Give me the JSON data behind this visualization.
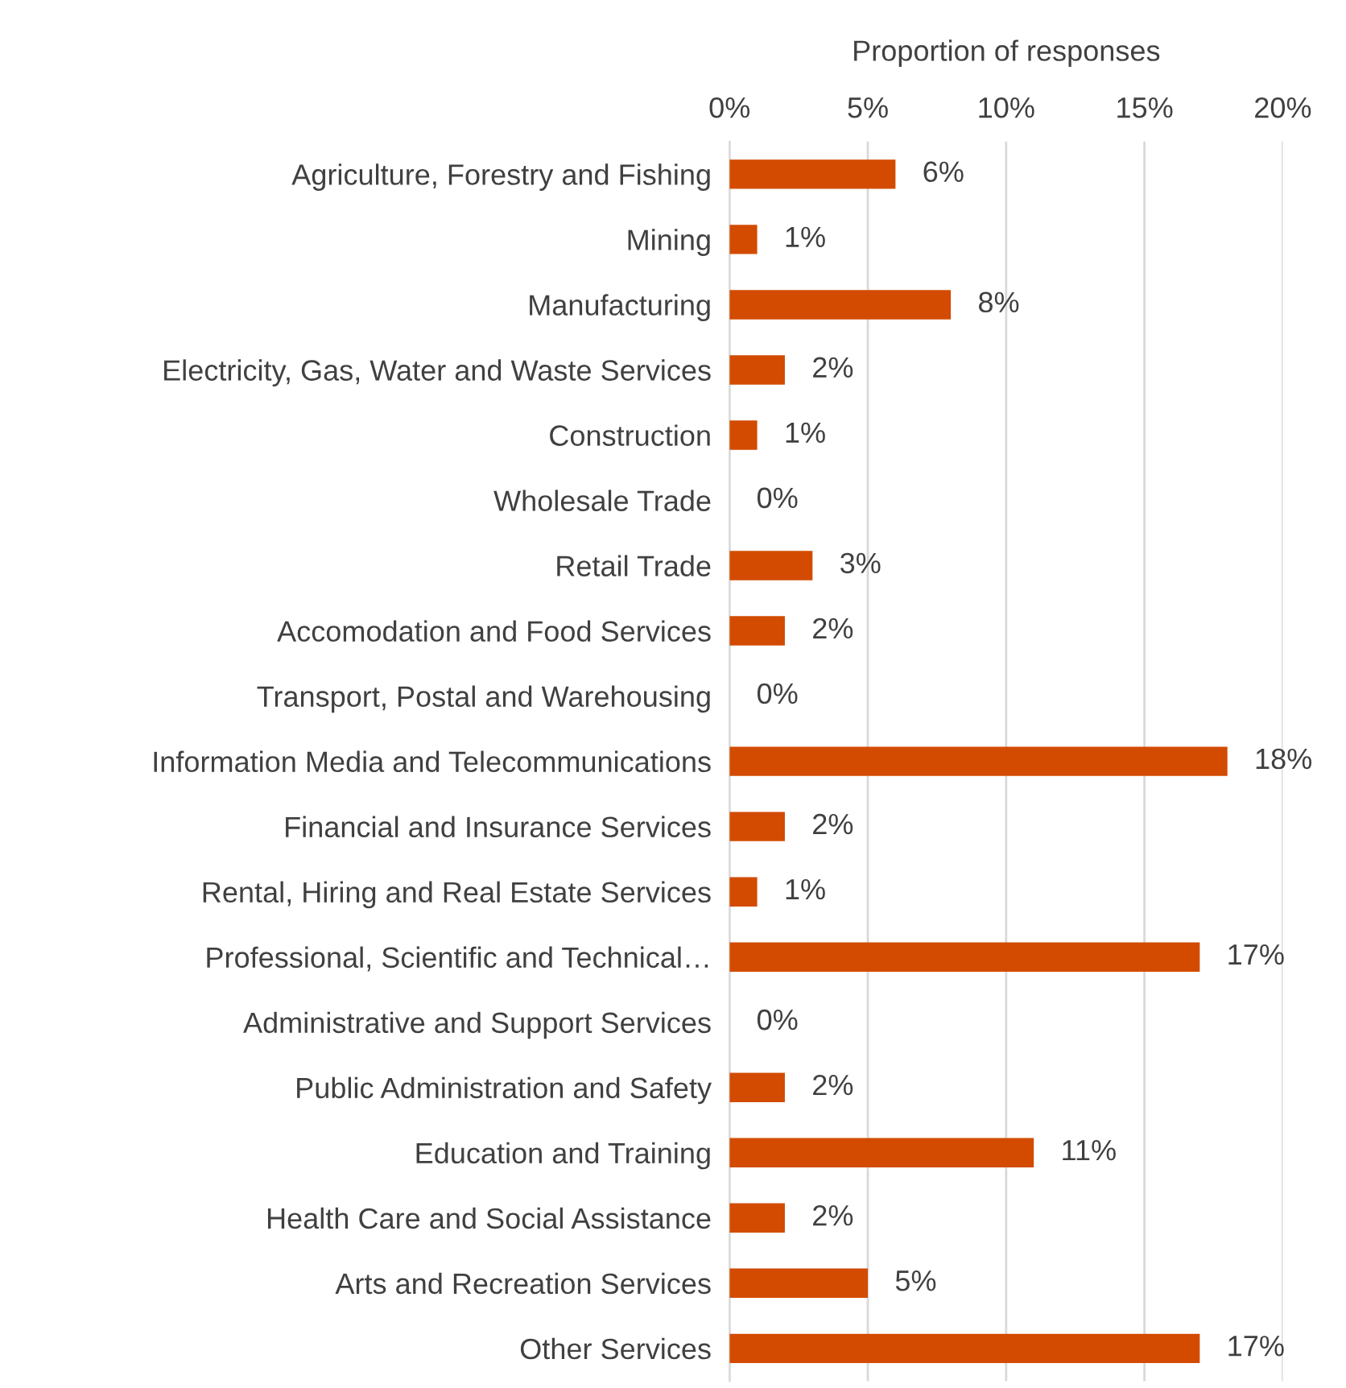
{
  "chart_data": {
    "type": "bar",
    "orientation": "horizontal",
    "xlabel": "Proportion of responses",
    "categories": [
      "Agriculture, Forestry and Fishing",
      "Mining",
      "Manufacturing",
      "Electricity, Gas, Water and Waste Services",
      "Construction",
      "Wholesale Trade",
      "Retail Trade",
      "Accomodation and Food Services",
      "Transport, Postal and Warehousing",
      "Information Media and Telecommunications",
      "Financial and Insurance Services",
      "Rental, Hiring and Real Estate Services",
      "Professional, Scientific and Technical…",
      "Administrative and Support Services",
      "Public Administration and Safety",
      "Education and Training",
      "Health Care and Social Assistance",
      "Arts and Recreation Services",
      "Other Services"
    ],
    "values": [
      6,
      1,
      8,
      2,
      1,
      0,
      3,
      2,
      0,
      18,
      2,
      1,
      17,
      0,
      2,
      11,
      2,
      5,
      17
    ],
    "value_labels": [
      "6%",
      "1%",
      "8%",
      "2%",
      "1%",
      "0%",
      "3%",
      "2%",
      "0%",
      "18%",
      "2%",
      "1%",
      "17%",
      "0%",
      "2%",
      "11%",
      "2%",
      "5%",
      "17%"
    ],
    "color": "#d24b00",
    "xlim": [
      0,
      20
    ],
    "xticks": [
      {
        "value": 0,
        "label": "0%"
      },
      {
        "value": 5,
        "label": "5%"
      },
      {
        "value": 10,
        "label": "10%"
      },
      {
        "value": 15,
        "label": "15%"
      },
      {
        "value": 20,
        "label": "20%"
      }
    ],
    "grid": "x"
  }
}
